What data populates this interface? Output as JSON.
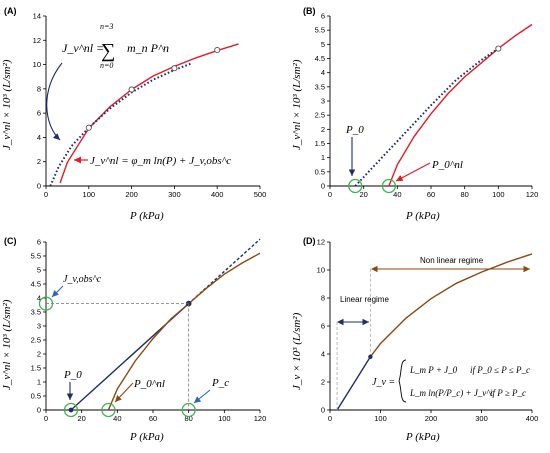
{
  "chart_data": [
    {
      "panel": "(A)",
      "type": "line",
      "xlim": [
        0,
        500
      ],
      "ylim": [
        0,
        14
      ],
      "xticks": [
        0,
        100,
        200,
        300,
        400,
        500
      ],
      "yticks": [
        0,
        2,
        4,
        6,
        8,
        10,
        12,
        14
      ],
      "xlabel": "P (kPa)",
      "ylabel": "J_v^nl × 10³ (L/sm²)",
      "series": [
        {
          "style": "red-solid",
          "color": "#e31b23",
          "x": [
            33,
            50,
            100,
            150,
            200,
            250,
            300,
            350,
            400,
            450
          ],
          "y": [
            0.25,
            1.95,
            4.75,
            6.55,
            7.95,
            9.05,
            9.85,
            10.55,
            11.15,
            11.7
          ]
        },
        {
          "style": "blue-dotted",
          "color": "#1f2d6b",
          "x": [
            10,
            30,
            60,
            100,
            150,
            200,
            250,
            300,
            340
          ],
          "y": [
            0.0,
            1.6,
            3.3,
            4.8,
            6.4,
            7.7,
            8.75,
            9.55,
            10.1
          ]
        },
        {
          "style": "markers",
          "x": [
            100,
            200,
            300,
            400
          ],
          "y": [
            4.8,
            7.95,
            9.7,
            11.2
          ]
        }
      ],
      "annotations": {
        "top_eq_lhs": "J_v^nl =",
        "sum_top": "n=3",
        "sum_bot": "n=0",
        "sum_sym": "∑",
        "top_eq_rhs": "m_n P^n",
        "bot_eq": "J_v^nl = φ_m ln(P) + J_v,obs^c"
      }
    },
    {
      "panel": "(B)",
      "type": "line",
      "xlim": [
        0,
        120
      ],
      "ylim": [
        0,
        6
      ],
      "xticks": [
        0,
        20,
        40,
        60,
        80,
        100,
        120
      ],
      "yticks": [
        0,
        0.5,
        1,
        1.5,
        2,
        2.5,
        3,
        3.5,
        4,
        4.5,
        5,
        5.5,
        6
      ],
      "xlabel": "P (kPa)",
      "ylabel": "J_v^nl × 10³ (L/sm²)",
      "series": [
        {
          "style": "red-solid",
          "color": "#e31b23",
          "x": [
            35,
            40,
            50,
            60,
            70,
            80,
            90,
            100,
            110,
            120
          ],
          "y": [
            0.0,
            0.75,
            1.75,
            2.55,
            3.25,
            3.85,
            4.35,
            4.85,
            5.3,
            5.7
          ]
        },
        {
          "style": "blue-dotted",
          "color": "#1f2d6b",
          "x": [
            15,
            30,
            45,
            60,
            75,
            90,
            100
          ],
          "y": [
            0.0,
            0.95,
            1.9,
            2.85,
            3.75,
            4.45,
            4.85
          ]
        },
        {
          "style": "markers",
          "x": [
            100
          ],
          "y": [
            4.85
          ]
        }
      ],
      "annotations": {
        "p0": "P_0",
        "p0nl": "P_0^nl"
      }
    },
    {
      "panel": "(C)",
      "type": "line",
      "xlim": [
        0,
        120
      ],
      "ylim": [
        0,
        6
      ],
      "xticks": [
        0,
        20,
        40,
        60,
        80,
        100,
        120
      ],
      "yticks": [
        0,
        0.5,
        1,
        1.5,
        2,
        2.5,
        3,
        3.5,
        4,
        4.5,
        5,
        5.5,
        6
      ],
      "xlabel": "P (kPa)",
      "ylabel": "J_v^nl × 10³ (L/sm²)",
      "series": [
        {
          "style": "linear-solid",
          "color": "#1f2d6b",
          "x": [
            14,
            80
          ],
          "y": [
            0,
            3.8
          ]
        },
        {
          "style": "linear-dashed",
          "color": "#1f2d6b",
          "x": [
            80,
            120
          ],
          "y": [
            3.8,
            6.1
          ]
        },
        {
          "style": "nonlinear",
          "color": "#8a4a12",
          "x": [
            35,
            40,
            50,
            60,
            70,
            80,
            90,
            100,
            110,
            120
          ],
          "y": [
            0.0,
            0.75,
            1.75,
            2.55,
            3.25,
            3.8,
            4.35,
            4.85,
            5.25,
            5.6
          ]
        },
        {
          "style": "marker",
          "x": [
            80
          ],
          "y": [
            3.8
          ]
        }
      ],
      "annotations": {
        "jvc": "J_v,obs^c",
        "p0": "P_0",
        "p0nl": "P_0^nl",
        "pc": "P_c"
      }
    },
    {
      "panel": "(D)",
      "type": "line",
      "xlim": [
        0,
        400
      ],
      "ylim": [
        0,
        12
      ],
      "xticks": [
        0,
        100,
        200,
        300,
        400
      ],
      "yticks": [
        0,
        2,
        4,
        6,
        8,
        10,
        12
      ],
      "xlabel": "P (kPa)",
      "ylabel": "J_v × 10³ (L/sm²)",
      "series": [
        {
          "style": "linear-solid",
          "color": "#1f2d6b",
          "x": [
            14,
            80
          ],
          "y": [
            0,
            3.8
          ]
        },
        {
          "style": "nonlinear",
          "color": "#8a4a12",
          "x": [
            80,
            100,
            150,
            200,
            250,
            300,
            350,
            400
          ],
          "y": [
            3.8,
            4.75,
            6.55,
            7.95,
            9.05,
            9.85,
            10.55,
            11.15
          ]
        }
      ],
      "annotations": {
        "linear_regime": "Linear regime",
        "nonlinear_regime": "Non linear regime",
        "eq_lhs": "J_v =",
        "case1_expr": "L_m P + J_0",
        "case1_cond": "if   P_0 ≤ P ≤ P_c",
        "case2_expr": "L_m ln(P/P_c) + J_v^c",
        "case2_cond": "if   P ≥ P_c"
      }
    }
  ],
  "panel_labels": [
    "(A)",
    "(B)",
    "(C)",
    "(D)"
  ],
  "colors": {
    "red": "#e31b23",
    "navy": "#1f2d6b",
    "brown": "#8a4a12",
    "green": "#3cb44b",
    "arrow_blue": "#2b66b8"
  }
}
